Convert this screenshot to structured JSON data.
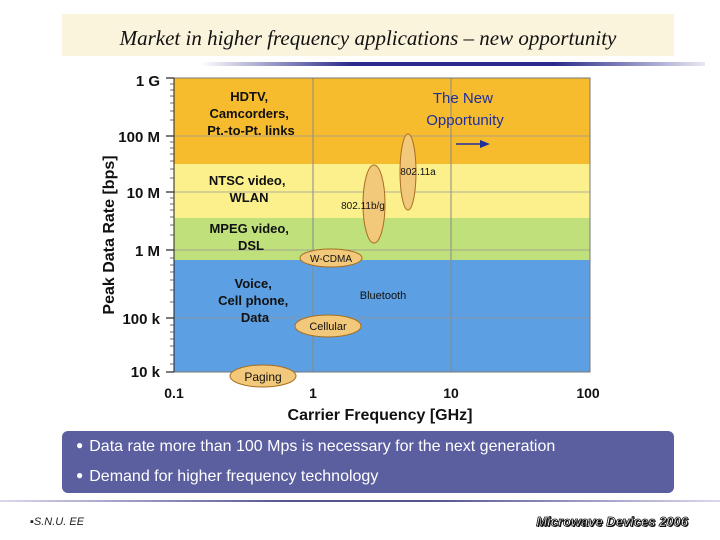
{
  "slide": {
    "title": "Market in higher frequency applications – new opportunity",
    "bullets": [
      "Data rate more than 100 Mps is necessary for the next generation",
      "Demand for higher frequency technology"
    ],
    "footer_left": "S.N.U. EE",
    "footer_right": "Microwave Devices 2006"
  },
  "chart_data": {
    "type": "diagram",
    "xlabel": "Carrier Frequency [GHz]",
    "ylabel": "Peak Data Rate [bps]",
    "x_ticks": [
      "0.1",
      "1",
      "10",
      "100"
    ],
    "y_ticks": [
      "1 G",
      "100 M",
      "10 M",
      "1 M",
      "100 k",
      "10 k"
    ],
    "bands": [
      {
        "label": "HDTV, Camcorders, Pt.-to-Pt. links",
        "color": "#f7bb2e"
      },
      {
        "label": "NTSC video, WLAN",
        "color": "#fbf08c"
      },
      {
        "label": "MPEG video, DSL",
        "color": "#bfe07a"
      },
      {
        "label": "Voice, Cell phone, Data",
        "color": "#5c9fe2"
      }
    ],
    "annotations": {
      "opportunity": "The New Opportunity",
      "a80211a": "802.11a",
      "a80211bg": "802.11b/g",
      "wcdma": "W-CDMA",
      "bluetooth": "Bluetooth",
      "cellular": "Cellular",
      "paging": "Paging"
    },
    "colors": {
      "ellipse_fill": "#f2c87a",
      "ellipse_stroke": "#a86e20",
      "opportunity_text": "#1e2f9a",
      "grid": "#888888"
    }
  }
}
